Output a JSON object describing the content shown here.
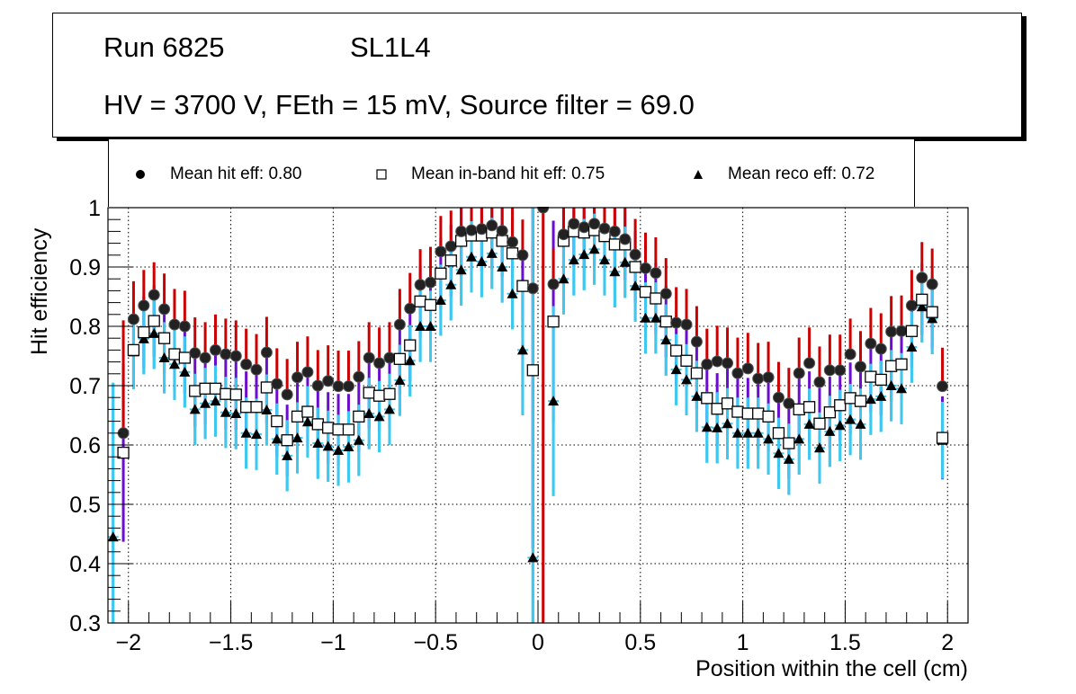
{
  "title": {
    "run": "Run 6825",
    "layer": "SL1L4",
    "conditions": "HV = 3700 V, FEth = 15 mV, Source filter = 69.0"
  },
  "legend": [
    {
      "marker": "filled-circle",
      "label": "Mean hit  eff: 0.80"
    },
    {
      "marker": "open-square",
      "label": "Mean in-band hit eff: 0.75"
    },
    {
      "marker": "filled-triangle",
      "label": "Mean reco eff: 0.72"
    }
  ],
  "colors": {
    "hit_err_upper": "#cc0000",
    "hit_err_lower": "#6a0dcc",
    "reco_err": "#3ec8f0",
    "marker": "#000000",
    "grid": "#000000"
  },
  "chart_data": {
    "type": "scatter",
    "title": "Run 6825 SL1L4 — HV = 3700 V, FEth = 15 mV, Source filter = 69.0",
    "xlabel": "Position within the cell (cm)",
    "ylabel": "Hit efficiency",
    "xlim": [
      -2.1,
      2.1
    ],
    "ylim": [
      0.3,
      1.0
    ],
    "xticks": [
      -2,
      -1.5,
      -1,
      -0.5,
      0,
      0.5,
      1,
      1.5,
      2
    ],
    "xtick_labels": [
      "−2",
      "−1.5",
      "−1",
      "−0.5",
      "0",
      "0.5",
      "1",
      "1.5",
      "2"
    ],
    "yticks": [
      0.3,
      0.4,
      0.5,
      0.6,
      0.7,
      0.8,
      0.9,
      1.0
    ],
    "ytick_labels": [
      "0.3",
      "0.4",
      "0.5",
      "0.6",
      "0.7",
      "0.8",
      "0.9",
      "1"
    ],
    "grid": true,
    "legend_position": "top",
    "x": [
      -2.075,
      -2.025,
      -1.975,
      -1.925,
      -1.875,
      -1.825,
      -1.775,
      -1.725,
      -1.675,
      -1.625,
      -1.575,
      -1.525,
      -1.475,
      -1.425,
      -1.375,
      -1.325,
      -1.275,
      -1.225,
      -1.175,
      -1.125,
      -1.075,
      -1.025,
      -0.975,
      -0.925,
      -0.875,
      -0.825,
      -0.775,
      -0.725,
      -0.675,
      -0.625,
      -0.575,
      -0.525,
      -0.475,
      -0.425,
      -0.375,
      -0.325,
      -0.275,
      -0.225,
      -0.175,
      -0.125,
      -0.075,
      -0.025,
      0.025,
      0.075,
      0.125,
      0.175,
      0.225,
      0.275,
      0.325,
      0.375,
      0.425,
      0.475,
      0.525,
      0.575,
      0.625,
      0.675,
      0.725,
      0.775,
      0.825,
      0.875,
      0.925,
      0.975,
      1.025,
      1.075,
      1.125,
      1.175,
      1.225,
      1.275,
      1.325,
      1.375,
      1.425,
      1.475,
      1.525,
      1.575,
      1.625,
      1.675,
      1.725,
      1.775,
      1.825,
      1.875,
      1.925,
      1.975
    ],
    "series": [
      {
        "name": "Mean hit  eff: 0.80",
        "marker": "filled-circle",
        "values": [
          null,
          0.62,
          0.812,
          0.835,
          0.853,
          0.829,
          0.803,
          0.8,
          0.755,
          0.747,
          0.76,
          0.753,
          0.75,
          0.736,
          0.727,
          0.756,
          0.703,
          0.685,
          0.714,
          0.723,
          0.7,
          0.708,
          0.699,
          0.699,
          0.715,
          0.747,
          0.738,
          0.747,
          0.803,
          0.83,
          0.87,
          0.874,
          0.926,
          0.935,
          0.96,
          0.962,
          0.964,
          0.97,
          0.961,
          0.942,
          0.92,
          0.864,
          1.0,
          0.871,
          0.955,
          0.973,
          0.967,
          0.973,
          0.965,
          0.96,
          0.947,
          0.921,
          0.898,
          0.89,
          0.855,
          0.806,
          0.803,
          0.774,
          0.736,
          0.741,
          0.738,
          0.721,
          0.729,
          0.712,
          0.714,
          0.68,
          0.67,
          0.721,
          0.738,
          0.706,
          0.726,
          0.726,
          0.753,
          0.732,
          0.771,
          0.762,
          0.791,
          0.792,
          0.835,
          0.882,
          0.871,
          0.699
        ],
        "errors": [
          null,
          0.19,
          0.064,
          0.06,
          0.055,
          0.06,
          0.06,
          0.06,
          0.06,
          0.06,
          0.06,
          0.06,
          0.06,
          0.06,
          0.06,
          0.06,
          0.06,
          0.06,
          0.06,
          0.06,
          0.06,
          0.06,
          0.06,
          0.06,
          0.06,
          0.06,
          0.06,
          0.06,
          0.06,
          0.06,
          0.06,
          0.06,
          0.06,
          0.06,
          0.06,
          0.06,
          0.06,
          0.06,
          0.06,
          0.06,
          0.06,
          0.08,
          0.7,
          0.06,
          0.06,
          0.06,
          0.06,
          0.06,
          0.06,
          0.06,
          0.06,
          0.06,
          0.06,
          0.06,
          0.06,
          0.06,
          0.06,
          0.06,
          0.06,
          0.06,
          0.06,
          0.06,
          0.06,
          0.06,
          0.06,
          0.06,
          0.06,
          0.06,
          0.06,
          0.06,
          0.06,
          0.06,
          0.06,
          0.06,
          0.06,
          0.06,
          0.06,
          0.06,
          0.06,
          0.06,
          0.06,
          0.065
        ]
      },
      {
        "name": "Mean in-band hit eff: 0.75",
        "marker": "open-square",
        "values": [
          null,
          0.587,
          0.76,
          0.79,
          0.809,
          0.78,
          0.753,
          0.747,
          0.691,
          0.695,
          0.695,
          0.686,
          0.685,
          0.664,
          0.664,
          0.697,
          0.64,
          0.608,
          0.648,
          0.656,
          0.635,
          0.629,
          0.626,
          0.626,
          0.648,
          0.688,
          0.683,
          0.686,
          0.745,
          0.768,
          0.842,
          0.836,
          0.889,
          0.911,
          0.944,
          0.953,
          0.953,
          0.958,
          0.944,
          0.923,
          0.868,
          0.726,
          null,
          0.808,
          0.944,
          0.96,
          0.958,
          0.962,
          0.952,
          0.938,
          0.938,
          0.9,
          0.858,
          0.847,
          0.808,
          0.759,
          0.742,
          0.721,
          0.679,
          0.661,
          0.67,
          0.656,
          0.653,
          0.653,
          0.648,
          0.62,
          0.603,
          0.66,
          0.664,
          0.636,
          0.655,
          0.667,
          0.679,
          0.674,
          0.715,
          0.71,
          0.733,
          0.736,
          0.792,
          0.845,
          0.824,
          0.612
        ],
        "errors": [
          null,
          0.15,
          0.06,
          0.06,
          0.06,
          0.06,
          0.06,
          0.06,
          0.06,
          0.06,
          0.06,
          0.06,
          0.06,
          0.06,
          0.06,
          0.06,
          0.06,
          0.06,
          0.06,
          0.06,
          0.06,
          0.06,
          0.06,
          0.06,
          0.06,
          0.06,
          0.06,
          0.06,
          0.06,
          0.06,
          0.06,
          0.06,
          0.06,
          0.06,
          0.06,
          0.06,
          0.06,
          0.06,
          0.06,
          0.06,
          0.06,
          0.3,
          null,
          0.17,
          0.06,
          0.06,
          0.06,
          0.06,
          0.06,
          0.06,
          0.06,
          0.06,
          0.06,
          0.06,
          0.06,
          0.06,
          0.06,
          0.06,
          0.06,
          0.06,
          0.06,
          0.06,
          0.06,
          0.06,
          0.06,
          0.06,
          0.06,
          0.06,
          0.06,
          0.06,
          0.06,
          0.06,
          0.06,
          0.06,
          0.06,
          0.06,
          0.06,
          0.06,
          0.06,
          0.06,
          0.06,
          0.07
        ]
      },
      {
        "name": "Mean reco eff: 0.72",
        "marker": "filled-triangle",
        "values": [
          0.445,
          null,
          0.757,
          0.779,
          0.788,
          0.747,
          0.736,
          0.723,
          0.66,
          0.67,
          0.674,
          0.655,
          0.653,
          0.62,
          0.618,
          0.659,
          0.61,
          0.582,
          0.612,
          0.639,
          0.603,
          0.598,
          0.591,
          0.597,
          0.608,
          0.653,
          0.648,
          0.66,
          0.709,
          0.742,
          0.8,
          0.8,
          0.844,
          0.87,
          0.895,
          0.917,
          0.909,
          0.923,
          0.9,
          0.855,
          0.76,
          0.41,
          null,
          0.674,
          0.88,
          0.912,
          0.921,
          0.93,
          0.912,
          0.892,
          0.908,
          0.868,
          0.814,
          0.814,
          0.777,
          0.727,
          0.71,
          0.682,
          0.63,
          0.629,
          0.636,
          0.62,
          0.62,
          0.62,
          0.61,
          0.586,
          0.576,
          0.61,
          0.635,
          0.595,
          0.623,
          0.633,
          0.643,
          0.635,
          0.677,
          0.682,
          0.7,
          0.695,
          0.765,
          0.833,
          0.813,
          0.608
        ],
        "errors": [
          0.26,
          null,
          0.063,
          0.06,
          0.06,
          0.06,
          0.06,
          0.06,
          0.06,
          0.06,
          0.06,
          0.06,
          0.06,
          0.06,
          0.06,
          0.06,
          0.06,
          0.06,
          0.06,
          0.06,
          0.06,
          0.06,
          0.06,
          0.06,
          0.06,
          0.06,
          0.06,
          0.06,
          0.06,
          0.06,
          0.06,
          0.06,
          0.06,
          0.06,
          0.06,
          0.06,
          0.06,
          0.06,
          0.06,
          0.06,
          0.11,
          0.6,
          null,
          0.16,
          0.06,
          0.06,
          0.06,
          0.06,
          0.06,
          0.06,
          0.06,
          0.06,
          0.06,
          0.06,
          0.06,
          0.06,
          0.06,
          0.06,
          0.06,
          0.06,
          0.06,
          0.06,
          0.06,
          0.06,
          0.06,
          0.06,
          0.06,
          0.06,
          0.06,
          0.06,
          0.06,
          0.06,
          0.06,
          0.06,
          0.06,
          0.06,
          0.06,
          0.06,
          0.06,
          0.06,
          0.06,
          0.065
        ]
      }
    ]
  }
}
